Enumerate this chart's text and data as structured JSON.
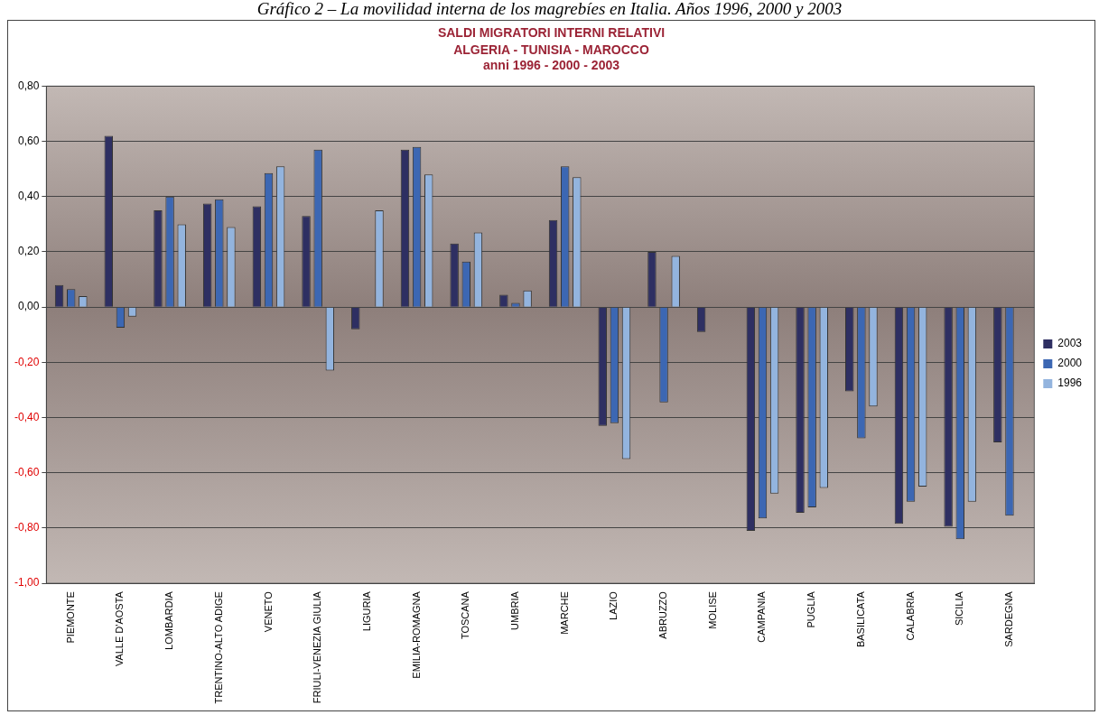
{
  "chart_data": {
    "type": "bar",
    "title": "SALDI MIGRATORI INTERNI RELATIVI",
    "subtitle": "ALGERIA - TUNISIA - MAROCCO\nanni 1996 - 2000 - 2003",
    "annotations": [
      "Gráfico 2 – La movilidad interna de los magrebíes en Italia. Años 1996, 2000 y 2003"
    ],
    "categories": [
      "PIEMONTE",
      "VALLE D'AOSTA",
      "LOMBARDIA",
      "TRENTINO-ALTO ADIGE",
      "VENETO",
      "FRIULI-VENEZIA GIULIA",
      "LIGURIA",
      "EMILIA-ROMAGNA",
      "TOSCANA",
      "UMBRIA",
      "MARCHE",
      "LAZIO",
      "ABRUZZO",
      "MOLISE",
      "CAMPANIA",
      "PUGLIA",
      "BASILICATA",
      "CALABRIA",
      "SICILIA",
      "SARDEGNA"
    ],
    "series": [
      {
        "name": "2003",
        "color": "#2e2f62",
        "values": [
          0.08,
          0.62,
          0.35,
          0.375,
          0.365,
          0.33,
          -0.08,
          0.57,
          0.23,
          0.045,
          0.315,
          -0.43,
          0.2,
          -0.09,
          -0.81,
          -0.745,
          -0.305,
          -0.785,
          -0.795,
          -0.49
        ]
      },
      {
        "name": "2000",
        "color": "#3c67b3",
        "values": [
          0.065,
          -0.075,
          0.4,
          0.39,
          0.485,
          0.57,
          null,
          0.58,
          0.165,
          0.015,
          0.51,
          -0.42,
          -0.345,
          null,
          -0.765,
          -0.725,
          -0.475,
          -0.705,
          -0.84,
          -0.755
        ]
      },
      {
        "name": "1996",
        "color": "#93b4de",
        "values": [
          0.04,
          -0.035,
          0.3,
          0.29,
          0.51,
          -0.23,
          0.35,
          0.48,
          0.27,
          0.06,
          0.47,
          -0.55,
          0.185,
          null,
          -0.675,
          -0.655,
          -0.36,
          -0.65,
          -0.705,
          null
        ]
      }
    ],
    "ylim": [
      -1,
      0.8
    ],
    "yticks": [
      {
        "value": -1,
        "label": "-1,00"
      },
      {
        "value": -0.8,
        "label": "-0,80"
      },
      {
        "value": -0.6,
        "label": "-0,60"
      },
      {
        "value": -0.4,
        "label": "-0,40"
      },
      {
        "value": -0.2,
        "label": "-0,20"
      },
      {
        "value": 0,
        "label": "0,00"
      },
      {
        "value": 0.2,
        "label": "0,20"
      },
      {
        "value": 0.4,
        "label": "0,40"
      },
      {
        "value": 0.6,
        "label": "0,60"
      },
      {
        "value": 0.8,
        "label": "0,80"
      }
    ],
    "grid": "y",
    "legend": "right"
  }
}
